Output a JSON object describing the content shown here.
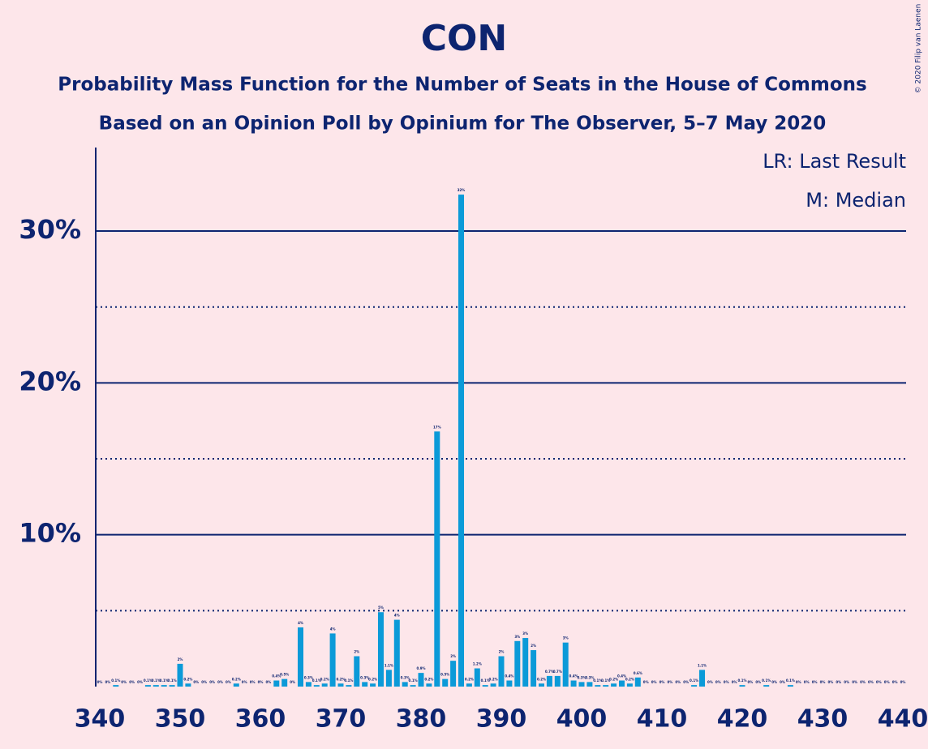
{
  "chart_data": {
    "type": "bar",
    "title": "CON",
    "subtitle": "Probability Mass Function for the Number of Seats in the House of Commons",
    "subtitle2": "Based on an Opinion Poll by Opinium for The Observer, 5–7 May 2020",
    "annotations": [
      "LR: Last Result",
      "M: Median"
    ],
    "copyright": "© 2020 Filip van Laenen",
    "color": "#0b9ad8",
    "x": [
      340,
      341,
      342,
      343,
      344,
      345,
      346,
      347,
      348,
      349,
      350,
      351,
      352,
      353,
      354,
      355,
      356,
      357,
      358,
      359,
      360,
      361,
      362,
      363,
      364,
      365,
      366,
      367,
      368,
      369,
      370,
      371,
      372,
      373,
      374,
      375,
      376,
      377,
      378,
      379,
      380,
      381,
      382,
      383,
      384,
      385,
      386,
      387,
      388,
      389,
      390,
      391,
      392,
      393,
      394,
      395,
      396,
      397,
      398,
      399,
      400,
      401,
      402,
      403,
      404,
      405,
      406,
      407,
      408,
      409,
      410,
      411,
      412,
      413,
      414,
      415,
      416,
      417,
      418,
      419,
      420,
      421,
      422,
      423,
      424,
      425,
      426,
      427,
      428,
      429,
      430,
      431,
      432,
      433,
      434,
      435,
      436,
      437,
      438,
      439,
      440
    ],
    "values": [
      0,
      0,
      0.1,
      0,
      0,
      0,
      0.1,
      0.1,
      0.1,
      0.1,
      1.5,
      0.2,
      0,
      0,
      0,
      0,
      0,
      0.2,
      0,
      0,
      0,
      0,
      0.4,
      0.5,
      0,
      3.9,
      0.3,
      0.1,
      0.2,
      3.5,
      0.2,
      0.1,
      2.0,
      0.3,
      0.2,
      4.9,
      1.1,
      4.4,
      0.3,
      0.1,
      0.9,
      0.2,
      16.8,
      0.5,
      1.7,
      32.4,
      0.2,
      1.2,
      0.1,
      0.2,
      2.0,
      0.4,
      3.0,
      3.2,
      2.4,
      0.2,
      0.7,
      0.7,
      2.9,
      0.4,
      0.3,
      0.3,
      0.1,
      0.1,
      0.2,
      0.4,
      0.2,
      0.6,
      0,
      0,
      0,
      0,
      0,
      0,
      0.1,
      1.1,
      0,
      0,
      0,
      0,
      0.1,
      0,
      0,
      0.1,
      0,
      0,
      0.1,
      0,
      0,
      0,
      0,
      0,
      0,
      0,
      0,
      0,
      0,
      0,
      0,
      0,
      0
    ],
    "value_labels": [
      "0%",
      "0%",
      "0.1%",
      "0%",
      "0%",
      "0%",
      "0.1%",
      "0.1%",
      "0.1%",
      "0.1%",
      "2%",
      "0.2%",
      "0%",
      "0%",
      "0%",
      "0%",
      "0%",
      "0.2%",
      "0%",
      "0%",
      "0%",
      "0%",
      "0.4%",
      "0.5%",
      "0%",
      "4%",
      "0.3%",
      "0.1%",
      "0.2%",
      "4%",
      "0.2%",
      "0.1%",
      "2%",
      "0.3%",
      "0.2%",
      "5%",
      "1.1%",
      "4%",
      "0.3%",
      "0.1%",
      "0.9%",
      "0.2%",
      "17%",
      "0.5%",
      "2%",
      "32%",
      "0.2%",
      "1.2%",
      "0.1%",
      "0.2%",
      "2%",
      "0.4%",
      "3%",
      "3%",
      "2%",
      "0.2%",
      "0.7%",
      "0.7%",
      "3%",
      "0.4%",
      "0.3%",
      "0.3%",
      "0.1%",
      "0.1%",
      "0.2%",
      "0.4%",
      "0.2%",
      "0.6%",
      "0%",
      "0%",
      "0%",
      "0%",
      "0%",
      "0%",
      "0.1%",
      "1.1%",
      "0%",
      "0%",
      "0%",
      "0%",
      "0.1%",
      "0%",
      "0%",
      "0.1%",
      "0%",
      "0%",
      "0.1%",
      "0%",
      "0%",
      "0%",
      "0%",
      "0%",
      "0%",
      "0%",
      "0%",
      "0%",
      "0%",
      "0%",
      "0%",
      "0%",
      "0%"
    ],
    "xlim": [
      340,
      440
    ],
    "xticks": [
      340,
      350,
      360,
      370,
      380,
      390,
      400,
      410,
      420,
      430,
      440
    ],
    "ylim": [
      0,
      35.5
    ],
    "yticks": [
      {
        "value": 10,
        "label": "10%"
      },
      {
        "value": 20,
        "label": "20%"
      },
      {
        "value": 30,
        "label": "30%"
      }
    ],
    "minor_yticks": [
      5,
      15,
      25
    ],
    "grid": true
  }
}
